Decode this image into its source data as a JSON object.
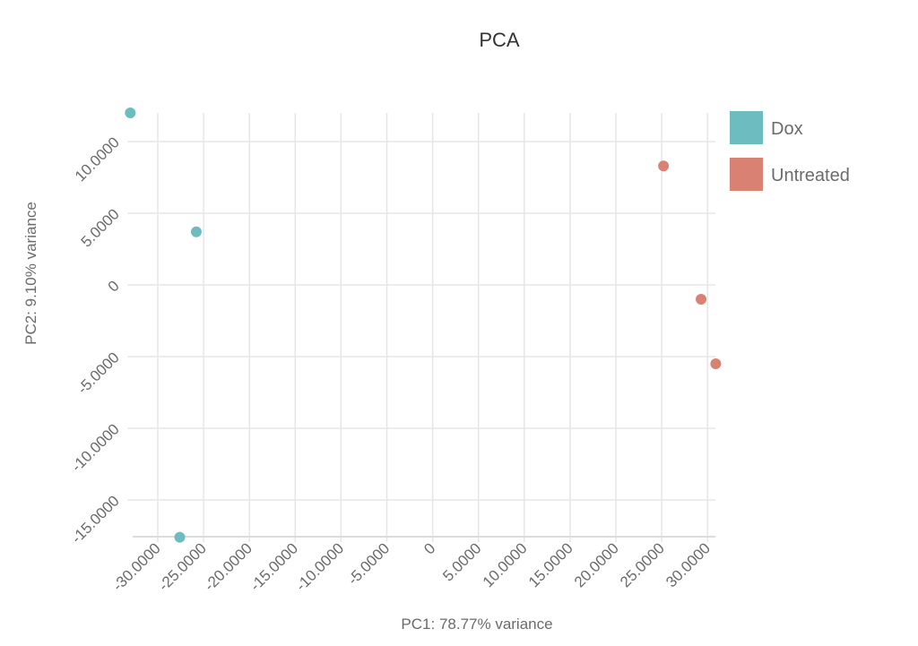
{
  "chart_data": {
    "type": "scatter",
    "title": "PCA",
    "xlabel": "PC1: 78.77% variance",
    "ylabel": "PC2: 9.10% variance",
    "xlim": [
      -33,
      31.5
    ],
    "ylim": [
      -17.6,
      12
    ],
    "xticks": [
      -30,
      -25,
      -20,
      -15,
      -10,
      -5,
      0,
      5,
      10,
      15,
      20,
      25,
      30
    ],
    "yticks": [
      -15,
      -10,
      -5,
      0,
      5,
      10
    ],
    "xtick_labels": [
      "-30.0000",
      "-25.0000",
      "-20.0000",
      "-15.0000",
      "-10.0000",
      "-5.0000",
      "0",
      "5.0000",
      "10.0000",
      "15.0000",
      "20.0000",
      "25.0000",
      "30.0000"
    ],
    "ytick_labels": [
      "-15.0000",
      "-10.0000",
      "-5.0000",
      "0",
      "5.0000",
      "10.0000"
    ],
    "grid": true,
    "legend_position": "top-right",
    "series": [
      {
        "name": "Dox",
        "color": "#6dbcc0",
        "points": [
          {
            "x": -33.0,
            "y": 12.0
          },
          {
            "x": -25.8,
            "y": 3.7
          },
          {
            "x": -27.6,
            "y": -17.6
          }
        ]
      },
      {
        "name": "Untreated",
        "color": "#d98274",
        "points": [
          {
            "x": 25.2,
            "y": 8.3
          },
          {
            "x": 29.3,
            "y": -1.0
          },
          {
            "x": 30.9,
            "y": -5.5
          }
        ]
      }
    ]
  }
}
